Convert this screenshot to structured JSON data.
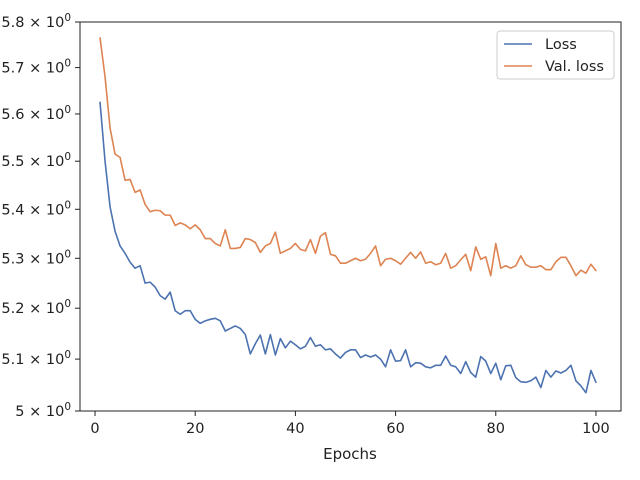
{
  "chart_data": {
    "type": "line",
    "xlabel": "Epochs",
    "ylabel": "",
    "xlim": [
      -3,
      105
    ],
    "ylim": [
      5.0,
      5.8
    ],
    "yscale": "log",
    "grid": false,
    "legend_position": "top-right",
    "x_ticks": [
      {
        "value": 0,
        "label": "0"
      },
      {
        "value": 20,
        "label": "20"
      },
      {
        "value": 40,
        "label": "40"
      },
      {
        "value": 60,
        "label": "60"
      },
      {
        "value": 80,
        "label": "80"
      },
      {
        "value": 100,
        "label": "100"
      }
    ],
    "y_ticks": [
      {
        "value": 5.0,
        "base": "5",
        "exp": "0"
      },
      {
        "value": 5.1,
        "base": "5.1",
        "exp": "0"
      },
      {
        "value": 5.2,
        "base": "5.2",
        "exp": "0"
      },
      {
        "value": 5.3,
        "base": "5.3",
        "exp": "0"
      },
      {
        "value": 5.4,
        "base": "5.4",
        "exp": "0"
      },
      {
        "value": 5.5,
        "base": "5.5",
        "exp": "0"
      },
      {
        "value": 5.6,
        "base": "5.6",
        "exp": "0"
      },
      {
        "value": 5.7,
        "base": "5.7",
        "exp": "0"
      },
      {
        "value": 5.8,
        "base": "5.8",
        "exp": "0"
      }
    ],
    "x": [
      1,
      2,
      3,
      4,
      5,
      6,
      7,
      8,
      9,
      10,
      11,
      12,
      13,
      14,
      15,
      16,
      17,
      18,
      19,
      20,
      21,
      22,
      23,
      24,
      25,
      26,
      27,
      28,
      29,
      30,
      31,
      32,
      33,
      34,
      35,
      36,
      37,
      38,
      39,
      40,
      41,
      42,
      43,
      44,
      45,
      46,
      47,
      48,
      49,
      50,
      51,
      52,
      53,
      54,
      55,
      56,
      57,
      58,
      59,
      60,
      61,
      62,
      63,
      64,
      65,
      66,
      67,
      68,
      69,
      70,
      71,
      72,
      73,
      74,
      75,
      76,
      77,
      78,
      79,
      80,
      81,
      82,
      83,
      84,
      85,
      86,
      87,
      88,
      89,
      90,
      91,
      92,
      93,
      94,
      95,
      96,
      97,
      98,
      99,
      100
    ],
    "series": [
      {
        "name": "Loss",
        "color": "#4c72b0",
        "values": [
          5.625,
          5.5,
          5.405,
          5.355,
          5.325,
          5.31,
          5.292,
          5.28,
          5.285,
          5.25,
          5.252,
          5.242,
          5.225,
          5.218,
          5.232,
          5.195,
          5.188,
          5.195,
          5.195,
          5.178,
          5.17,
          5.175,
          5.178,
          5.18,
          5.175,
          5.155,
          5.16,
          5.165,
          5.16,
          5.148,
          5.11,
          5.13,
          5.147,
          5.11,
          5.148,
          5.108,
          5.14,
          5.122,
          5.135,
          5.128,
          5.12,
          5.125,
          5.142,
          5.125,
          5.128,
          5.118,
          5.12,
          5.11,
          5.102,
          5.113,
          5.118,
          5.118,
          5.103,
          5.108,
          5.104,
          5.108,
          5.1,
          5.085,
          5.118,
          5.096,
          5.097,
          5.118,
          5.085,
          5.093,
          5.092,
          5.085,
          5.083,
          5.088,
          5.088,
          5.106,
          5.088,
          5.085,
          5.072,
          5.095,
          5.074,
          5.065,
          5.105,
          5.096,
          5.072,
          5.092,
          5.06,
          5.087,
          5.088,
          5.064,
          5.056,
          5.055,
          5.058,
          5.065,
          5.045,
          5.078,
          5.065,
          5.077,
          5.073,
          5.078,
          5.088,
          5.058,
          5.048,
          5.035,
          5.078,
          5.055
        ]
      },
      {
        "name": "Val. loss",
        "color": "#dd8452",
        "values": [
          5.765,
          5.68,
          5.57,
          5.515,
          5.508,
          5.46,
          5.462,
          5.435,
          5.44,
          5.41,
          5.395,
          5.398,
          5.397,
          5.388,
          5.388,
          5.367,
          5.372,
          5.368,
          5.36,
          5.368,
          5.358,
          5.34,
          5.34,
          5.33,
          5.325,
          5.358,
          5.32,
          5.32,
          5.322,
          5.34,
          5.338,
          5.332,
          5.312,
          5.325,
          5.33,
          5.353,
          5.31,
          5.315,
          5.32,
          5.33,
          5.318,
          5.315,
          5.338,
          5.31,
          5.345,
          5.352,
          5.308,
          5.305,
          5.29,
          5.29,
          5.295,
          5.3,
          5.295,
          5.298,
          5.31,
          5.325,
          5.285,
          5.298,
          5.3,
          5.295,
          5.288,
          5.3,
          5.312,
          5.3,
          5.313,
          5.29,
          5.293,
          5.287,
          5.29,
          5.31,
          5.28,
          5.285,
          5.297,
          5.308,
          5.275,
          5.323,
          5.298,
          5.303,
          5.265,
          5.33,
          5.28,
          5.285,
          5.28,
          5.285,
          5.305,
          5.287,
          5.282,
          5.282,
          5.285,
          5.277,
          5.277,
          5.293,
          5.302,
          5.302,
          5.285,
          5.265,
          5.276,
          5.27,
          5.288,
          5.275
        ]
      }
    ]
  }
}
